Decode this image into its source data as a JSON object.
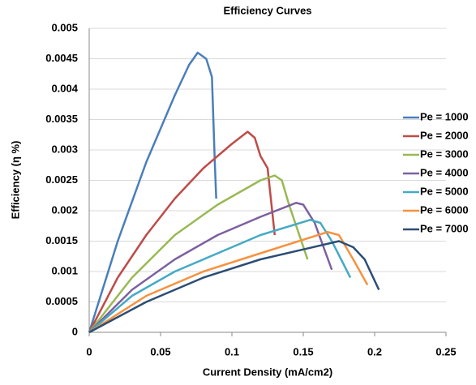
{
  "chart_data": {
    "type": "line",
    "title": "Efficiency Curves",
    "x_label": "Current Density (mA/cm2)",
    "y_label": "Efficiency (η %)",
    "xlim": [
      0,
      0.25
    ],
    "xticks": [
      0,
      0.05,
      0.1,
      0.15,
      0.2,
      0.25
    ],
    "ylim": [
      0,
      0.005
    ],
    "yticks": [
      0,
      0.0005,
      0.001,
      0.0015,
      0.002,
      0.0025,
      0.003,
      0.0035,
      0.004,
      0.0045,
      0.005
    ],
    "grid": true,
    "legend": "right",
    "series": [
      {
        "name": "Pe = 1000",
        "color": "#4a7ebb",
        "x": [
          0,
          0.02,
          0.04,
          0.06,
          0.07,
          0.076,
          0.082,
          0.086,
          0.087,
          0.088,
          0.089
        ],
        "values": [
          0,
          0.0015,
          0.0028,
          0.0039,
          0.0044,
          0.0046,
          0.0045,
          0.0042,
          0.0035,
          0.0028,
          0.0022
        ]
      },
      {
        "name": "Pe = 2000",
        "color": "#be4b48",
        "x": [
          0,
          0.02,
          0.04,
          0.06,
          0.08,
          0.1,
          0.111,
          0.116,
          0.12,
          0.125,
          0.13
        ],
        "values": [
          0,
          0.0009,
          0.0016,
          0.0022,
          0.0027,
          0.0031,
          0.0033,
          0.0032,
          0.0029,
          0.0027,
          0.0016
        ]
      },
      {
        "name": "Pe = 3000",
        "color": "#98b954",
        "x": [
          0,
          0.03,
          0.06,
          0.09,
          0.12,
          0.13,
          0.135,
          0.14,
          0.153
        ],
        "values": [
          0,
          0.0009,
          0.0016,
          0.0021,
          0.0025,
          0.00258,
          0.0025,
          0.0021,
          0.0012
        ]
      },
      {
        "name": "Pe = 4000",
        "color": "#7d60a0",
        "x": [
          0,
          0.03,
          0.06,
          0.09,
          0.12,
          0.145,
          0.15,
          0.158,
          0.17
        ],
        "values": [
          0,
          0.0007,
          0.0012,
          0.0016,
          0.0019,
          0.00213,
          0.0021,
          0.0018,
          0.00103
        ]
      },
      {
        "name": "Pe = 5000",
        "color": "#46aac5",
        "x": [
          0,
          0.03,
          0.06,
          0.09,
          0.12,
          0.155,
          0.162,
          0.17,
          0.183
        ],
        "values": [
          0,
          0.0006,
          0.001,
          0.0013,
          0.0016,
          0.00185,
          0.0018,
          0.0015,
          0.0009
        ]
      },
      {
        "name": "Pe = 6000",
        "color": "#f69240",
        "x": [
          0,
          0.04,
          0.08,
          0.12,
          0.167,
          0.175,
          0.185,
          0.195
        ],
        "values": [
          0,
          0.0006,
          0.001,
          0.0013,
          0.00165,
          0.0016,
          0.0012,
          0.00078
        ]
      },
      {
        "name": "Pe = 7000",
        "color": "#2c4d75",
        "x": [
          0,
          0.04,
          0.08,
          0.12,
          0.175,
          0.185,
          0.193,
          0.203
        ],
        "values": [
          0,
          0.0005,
          0.0009,
          0.0012,
          0.0015,
          0.0014,
          0.0012,
          0.0007
        ]
      }
    ]
  }
}
